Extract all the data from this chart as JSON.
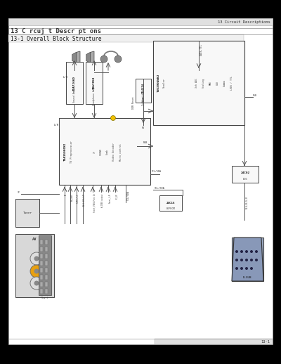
{
  "page_bg": "#000000",
  "content_bg": "#ffffff",
  "header_text": "13 Circuit Descriptions",
  "title_text": "13 C rcuj t Descr pt ons",
  "subtitle_text": "13-1 Overall Block Structure",
  "footer_text": "13-1",
  "line_color": "#555555",
  "box_face": "#f8f8f8",
  "box_edge": "#444444"
}
